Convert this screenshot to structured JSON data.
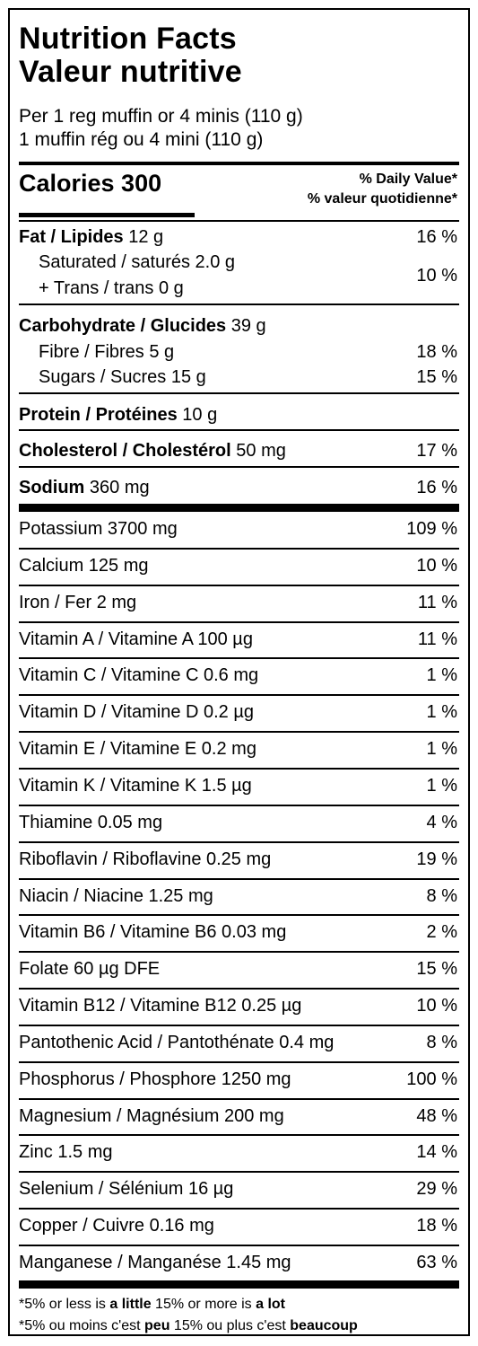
{
  "title_en": "Nutrition Facts",
  "title_fr": "Valeur nutritive",
  "serving_en": "Per 1 reg muffin or 4 minis (110 g)",
  "serving_fr": "1 muffin rég ou 4 mini (110 g)",
  "calories": "Calories 300",
  "dv_en": "% Daily Value*",
  "dv_fr": "% valeur quotidienne*",
  "fat": {
    "name": "Fat / Lipides",
    "amount": "12 g",
    "dv": "16 %"
  },
  "saturated": "Saturated / saturés 2.0 g",
  "trans": "+ Trans / trans 0 g",
  "sat_trans_dv": "10 %",
  "carb": {
    "name": "Carbohydrate / Glucides",
    "amount": "39 g"
  },
  "fibre": {
    "text": "Fibre / Fibres 5 g",
    "dv": "18 %"
  },
  "sugars": {
    "text": "Sugars / Sucres 15 g",
    "dv": "15 %"
  },
  "protein": {
    "name": "Protein / Protéines",
    "amount": "10 g"
  },
  "cholesterol": {
    "name": "Cholesterol / Cholestérol",
    "amount": "50 mg",
    "dv": "17 %"
  },
  "sodium": {
    "name": "Sodium",
    "amount": "360 mg",
    "dv": "16 %"
  },
  "micros": [
    {
      "text": "Potassium 3700 mg",
      "dv": "109 %"
    },
    {
      "text": "Calcium 125 mg",
      "dv": "10 %"
    },
    {
      "text": "Iron / Fer 2 mg",
      "dv": "11 %"
    },
    {
      "text": "Vitamin A / Vitamine A 100 µg",
      "dv": "11 %"
    },
    {
      "text": "Vitamin C / Vitamine C 0.6 mg",
      "dv": "1 %"
    },
    {
      "text": "Vitamin D / Vitamine D 0.2 µg",
      "dv": "1 %"
    },
    {
      "text": "Vitamin E / Vitamine E 0.2 mg",
      "dv": "1 %"
    },
    {
      "text": "Vitamin K / Vitamine K 1.5 µg",
      "dv": "1 %"
    },
    {
      "text": "Thiamine 0.05 mg",
      "dv": "4 %"
    },
    {
      "text": "Riboflavin / Riboflavine 0.25 mg",
      "dv": "19 %"
    },
    {
      "text": "Niacin / Niacine 1.25 mg",
      "dv": "8 %"
    },
    {
      "text": "Vitamin B6 / Vitamine B6 0.03 mg",
      "dv": "2 %"
    },
    {
      "text": "Folate 60 µg DFE",
      "dv": "15 %"
    },
    {
      "text": "Vitamin B12 / Vitamine B12 0.25 µg",
      "dv": "10 %"
    },
    {
      "text": "Pantothenic Acid / Pantothénate 0.4 mg",
      "dv": "8 %"
    },
    {
      "text": "Phosphorus / Phosphore 1250 mg",
      "dv": "100 %"
    },
    {
      "text": "Magnesium / Magnésium 200 mg",
      "dv": "48 %"
    },
    {
      "text": "Zinc 1.5 mg",
      "dv": "14 %"
    },
    {
      "text": "Selenium / Sélénium 16 µg",
      "dv": "29 %"
    },
    {
      "text": "Copper / Cuivre 0.16 mg",
      "dv": "18 %"
    },
    {
      "text": "Manganese / Manganése 1.45 mg",
      "dv": "63 %"
    }
  ],
  "footnote_en": {
    "a": "*5% or less is ",
    "b": "a little",
    "c": " 15% or more is ",
    "d": "a lot"
  },
  "footnote_fr": {
    "a": "*5% ou moins c'est ",
    "b": "peu",
    "c": " 15% ou plus c'est ",
    "d": "beaucoup"
  }
}
